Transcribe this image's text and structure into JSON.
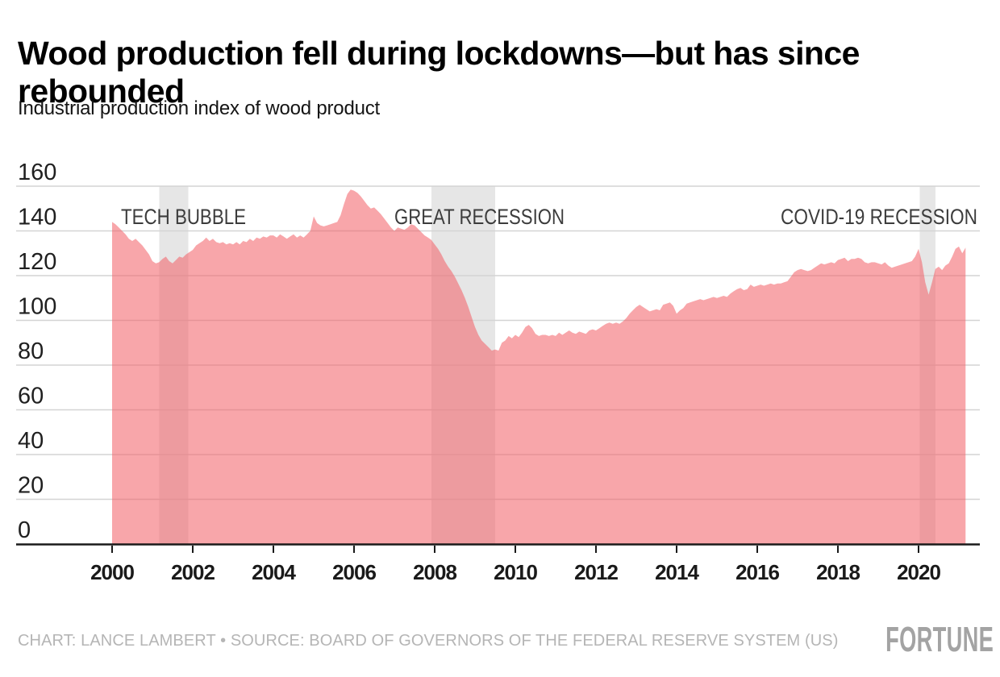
{
  "header": {
    "title": "Wood production fell during lockdowns—but has since rebounded",
    "subtitle": "Industrial production index of wood product"
  },
  "footer": {
    "credit": "CHART: LANCE LAMBERT • SOURCE: BOARD OF GOVERNORS OF THE FEDERAL RESERVE SYSTEM (US)",
    "brand": "FORTUNE"
  },
  "chart_data": {
    "type": "area",
    "title": "Wood production fell during lockdowns—but has since rebounded",
    "subtitle": "Industrial production index of wood product",
    "xlabel": "",
    "ylabel": "",
    "xlim": [
      2000,
      2021.17
    ],
    "ylim": [
      0,
      160
    ],
    "x_ticks": [
      2000,
      2002,
      2004,
      2006,
      2008,
      2010,
      2012,
      2014,
      2016,
      2018,
      2020
    ],
    "y_ticks": [
      0,
      20,
      40,
      60,
      80,
      100,
      120,
      140,
      160
    ],
    "grid": "horizontal",
    "legend": "none",
    "fill_color": "#F25D64",
    "fill_opacity": 0.55,
    "band_color": "#e6e6e6",
    "grid_color": "#d4d4d4",
    "axis_color": "#1a1a1a",
    "annotation_color": "#3c3c3c",
    "series": [
      {
        "name": "Industrial production index of wood product",
        "x_start": 2000.0,
        "x_step": 0.08333,
        "values": [
          144,
          143,
          141.5,
          140,
          138.5,
          136.5,
          135.5,
          136.5,
          135,
          133.5,
          131.5,
          129.5,
          126.5,
          125.5,
          126,
          127.5,
          128.5,
          126.5,
          125.5,
          127,
          128.5,
          128,
          129.5,
          130.5,
          131.5,
          133.5,
          134.5,
          135.5,
          137,
          135.5,
          136.5,
          135,
          134.5,
          135,
          134,
          134.5,
          134,
          135,
          134,
          135.5,
          135,
          136.5,
          135.5,
          137,
          136.5,
          137.5,
          137,
          138,
          138,
          137,
          138.5,
          137.5,
          136.5,
          137.5,
          138.5,
          137,
          138,
          137,
          138.5,
          140,
          146.5,
          143.5,
          142.5,
          142,
          142.5,
          143,
          143.5,
          144,
          147,
          152,
          156.5,
          158.5,
          158,
          157,
          155.5,
          153.5,
          151.5,
          150,
          150.5,
          149,
          147.5,
          145.5,
          143.5,
          141.5,
          140,
          141.5,
          141,
          140.5,
          141.5,
          143,
          142.5,
          141,
          139.5,
          138,
          137,
          136,
          134,
          132,
          129.5,
          126.5,
          124,
          122,
          119.5,
          116.5,
          113.5,
          110,
          106,
          101.5,
          97,
          93.5,
          91,
          89.5,
          88,
          86.5,
          87,
          86.5,
          90,
          91,
          93,
          92,
          93.5,
          92.5,
          94.5,
          97,
          98,
          96.5,
          94,
          93,
          93.5,
          93.5,
          93,
          93.5,
          93,
          94.5,
          93.5,
          94.5,
          95.5,
          94.5,
          94,
          95,
          94.5,
          94,
          95.5,
          96,
          95.5,
          96.5,
          97.5,
          98.5,
          99,
          98.5,
          99,
          98.5,
          99.5,
          101,
          103,
          104.5,
          106,
          107,
          106,
          105,
          104,
          104.5,
          105,
          104.5,
          107,
          107.5,
          108,
          106.5,
          103,
          104.5,
          105.5,
          107.5,
          108,
          108.5,
          109,
          109.5,
          109,
          109.5,
          110,
          110.5,
          110,
          110.5,
          111,
          110.5,
          112,
          113,
          114,
          114.5,
          113.5,
          114,
          116,
          115,
          115.5,
          116,
          115.5,
          116,
          116.5,
          116,
          116.5,
          116.5,
          117,
          117.5,
          119.5,
          121.5,
          122.5,
          123,
          122.5,
          122,
          122.5,
          123.5,
          124.5,
          125.5,
          125,
          125.5,
          126,
          125.5,
          127,
          127.5,
          128,
          126.5,
          127.5,
          127.5,
          128,
          127.5,
          126,
          125.5,
          126,
          126,
          125.5,
          125,
          126,
          124.5,
          123.5,
          124,
          124.5,
          125,
          125.5,
          126,
          126.5,
          128.5,
          132,
          126,
          117,
          111.5,
          117,
          123,
          124,
          122.5,
          124.5,
          125.5,
          128.5,
          132,
          133,
          130,
          132.5
        ]
      }
    ],
    "recessions": [
      {
        "label": "TECH BUBBLE",
        "start": 2001.17,
        "end": 2001.89,
        "label_x": 2000.22,
        "label_align": "start",
        "label_width": 155
      },
      {
        "label": "GREAT RECESSION",
        "start": 2007.92,
        "end": 2009.5,
        "label_x": 2007.0,
        "label_align": "start",
        "label_width": 211
      },
      {
        "label": "COVID-19 RECESSION",
        "start": 2020.03,
        "end": 2020.42,
        "label_x": 2021.46,
        "label_align": "end",
        "label_width": 244
      }
    ]
  }
}
